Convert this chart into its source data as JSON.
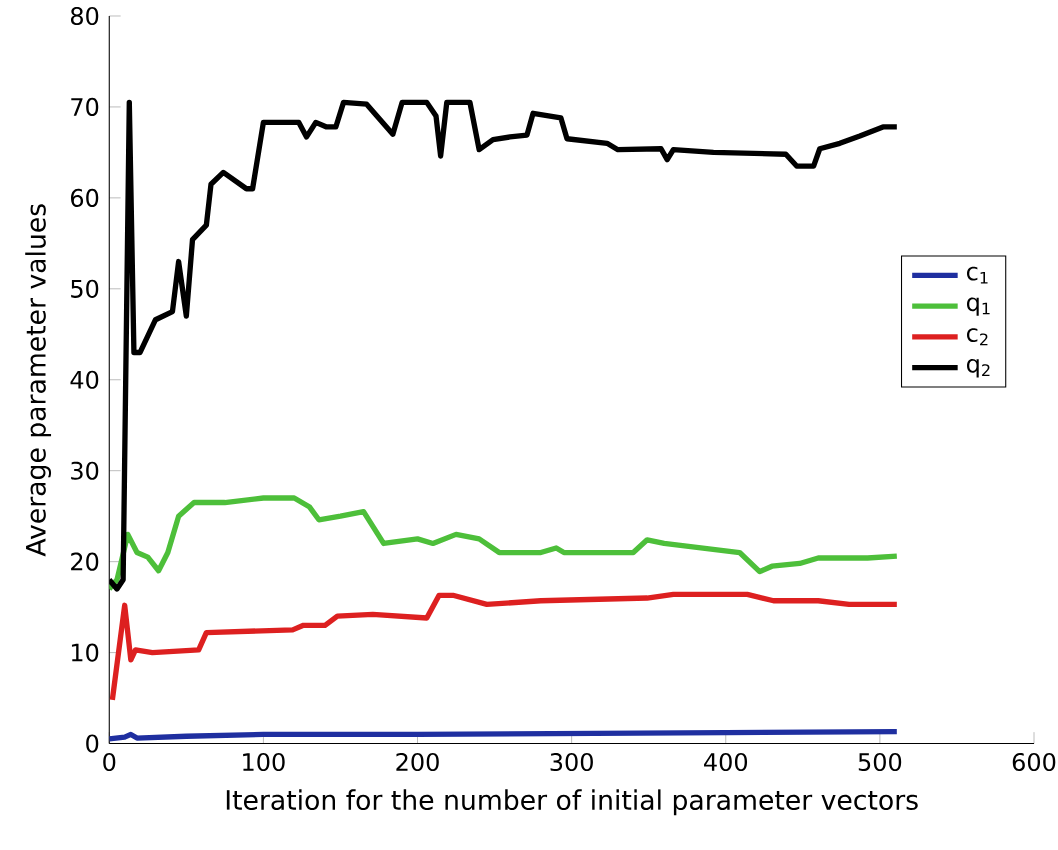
{
  "chart_data": {
    "type": "line",
    "xlabel": "Iteration for the number of initial parameter vectors",
    "ylabel": "Average parameter values",
    "xlim": [
      0,
      600
    ],
    "ylim": [
      0,
      80
    ],
    "xticks": [
      0,
      100,
      200,
      300,
      400,
      500,
      600
    ],
    "yticks": [
      0,
      10,
      20,
      30,
      40,
      50,
      60,
      70,
      80
    ],
    "grid": false,
    "legend": "right",
    "marker": "none",
    "line_style": "solid",
    "series": [
      {
        "name": "c$_{1}$",
        "color": "#1f2fa0",
        "x": [
          0,
          10,
          14,
          18,
          50,
          100,
          200,
          300,
          400,
          511
        ],
        "values": [
          0.5,
          0.7,
          1,
          0.6,
          0.8,
          1,
          1,
          1.1,
          1.2,
          1.3
        ]
      },
      {
        "name": "q$_{1}$",
        "color": "#4dbf3a",
        "x": [
          0,
          5,
          12,
          18,
          25,
          32,
          38,
          45,
          55,
          75,
          100,
          120,
          130,
          136,
          150,
          165,
          178,
          200,
          210,
          225,
          240,
          253,
          280,
          290,
          295,
          340,
          349,
          360,
          409,
          422,
          430,
          448,
          460,
          492,
          511
        ],
        "values": [
          17,
          18,
          23,
          21,
          20.5,
          19,
          21,
          25,
          26.5,
          26.5,
          27,
          27,
          26,
          24.6,
          25,
          25.5,
          22,
          22.5,
          22,
          23,
          22.5,
          21,
          21,
          21.5,
          21,
          21,
          22.4,
          22,
          21,
          18.9,
          19.5,
          19.8,
          20.4,
          20.4,
          20.6
        ]
      },
      {
        "name": "c$_{2}$",
        "color": "#dd2020",
        "x": [
          2,
          10,
          14,
          17,
          28,
          58,
          63,
          119,
          126,
          140,
          148,
          171,
          206,
          214,
          223,
          245,
          280,
          349,
          366,
          414,
          431,
          460,
          480,
          511
        ],
        "values": [
          4.8,
          15.2,
          9.2,
          10.3,
          10,
          10.3,
          12.2,
          12.5,
          13,
          13,
          14,
          14.2,
          13.8,
          16.3,
          16.3,
          15.3,
          15.7,
          16,
          16.4,
          16.4,
          15.7,
          15.7,
          15.3,
          15.3
        ]
      },
      {
        "name": "q$_{2}$",
        "color": "#000000",
        "x": [
          0,
          5,
          9,
          13,
          16,
          20,
          30,
          41,
          45,
          50,
          54,
          63,
          66,
          74,
          89,
          93,
          100,
          123,
          128,
          134,
          141,
          147,
          152,
          167,
          184,
          190,
          206,
          212,
          215,
          219,
          234,
          240,
          249,
          260,
          271,
          275,
          293,
          297,
          323,
          330,
          358,
          362,
          366,
          392,
          439,
          446,
          457,
          461,
          474,
          487,
          502,
          511
        ],
        "values": [
          18,
          17,
          18,
          70.5,
          43,
          43,
          46.6,
          47.5,
          53,
          47,
          55.4,
          57,
          61.5,
          62.8,
          61,
          61,
          68.3,
          68.3,
          66.7,
          68.3,
          67.8,
          67.8,
          70.5,
          70.3,
          67,
          70.5,
          70.5,
          69,
          64.6,
          70.5,
          70.5,
          65.3,
          66.4,
          66.7,
          66.9,
          69.3,
          68.8,
          66.5,
          66,
          65.3,
          65.4,
          64.2,
          65.3,
          65,
          64.8,
          63.5,
          63.5,
          65.4,
          66,
          66.8,
          67.8,
          67.8
        ]
      }
    ]
  }
}
